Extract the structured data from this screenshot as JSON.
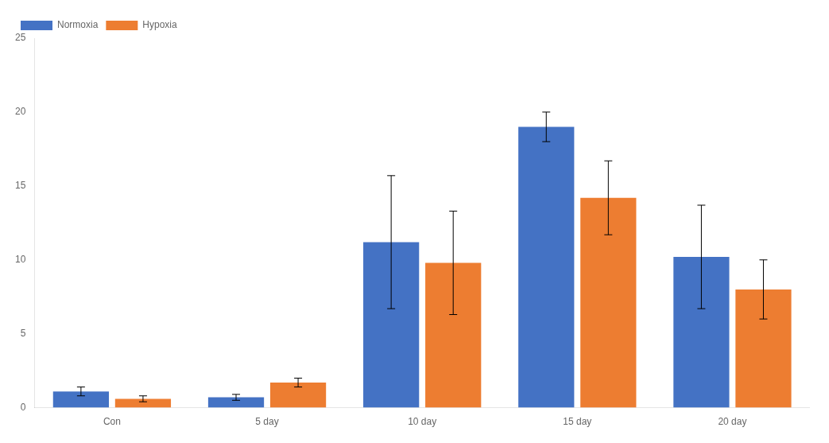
{
  "chart_data": {
    "type": "bar",
    "categories": [
      "Con",
      "5 day",
      "10 day",
      "15 day",
      "20 day"
    ],
    "series": [
      {
        "name": "Normoxia",
        "color": "#4472C4",
        "values": [
          1.1,
          0.7,
          11.2,
          19.0,
          10.2
        ],
        "errors": [
          0.3,
          0.2,
          4.5,
          1.0,
          3.5
        ]
      },
      {
        "name": "Hypoxia",
        "color": "#ED7D31",
        "values": [
          0.6,
          1.7,
          9.8,
          14.2,
          8.0
        ],
        "errors": [
          0.2,
          0.3,
          3.5,
          2.5,
          2.0
        ]
      }
    ],
    "ylim": [
      0,
      25
    ],
    "yticks": [
      0,
      5,
      10,
      15,
      20,
      25
    ],
    "legend": "upper left",
    "grid": false
  }
}
